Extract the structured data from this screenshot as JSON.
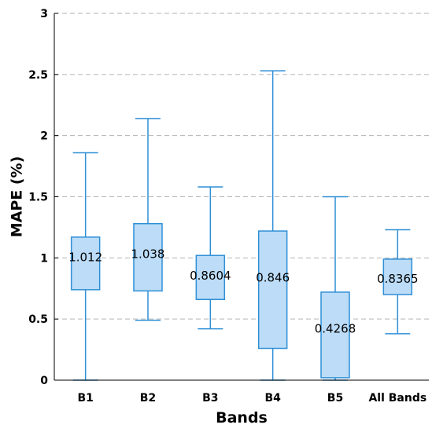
{
  "chart_data": {
    "type": "box",
    "title": "",
    "xlabel": "Bands",
    "ylabel": "MAPE (%)",
    "ylim": [
      0,
      3
    ],
    "yticks": [
      "0",
      "0.5",
      "1",
      "1.5",
      "2",
      "2.5",
      "3"
    ],
    "grid": "horizontal dashed",
    "color": "#2f8fd6",
    "fill": "#bcdcf7",
    "boxes": [
      {
        "category": "B1",
        "min": 0.0,
        "q1": 0.74,
        "median": 1.012,
        "q3": 1.17,
        "max": 1.86,
        "median_label": "1.012"
      },
      {
        "category": "B2",
        "min": 0.49,
        "q1": 0.73,
        "median": 1.038,
        "q3": 1.28,
        "max": 2.14,
        "median_label": "1.038"
      },
      {
        "category": "B3",
        "min": 0.42,
        "q1": 0.66,
        "median": 0.8604,
        "q3": 1.02,
        "max": 1.58,
        "median_label": "0.8604"
      },
      {
        "category": "B4",
        "min": 0.0,
        "q1": 0.26,
        "median": 0.846,
        "q3": 1.22,
        "max": 2.53,
        "median_label": "0.846"
      },
      {
        "category": "B5",
        "min": 0.0,
        "q1": 0.02,
        "median": 0.4268,
        "q3": 0.72,
        "max": 1.5,
        "median_label": "0.4268"
      },
      {
        "category": "All Bands",
        "min": 0.38,
        "q1": 0.7,
        "median": 0.8365,
        "q3": 0.99,
        "max": 1.23,
        "median_label": "0.8365"
      }
    ]
  }
}
